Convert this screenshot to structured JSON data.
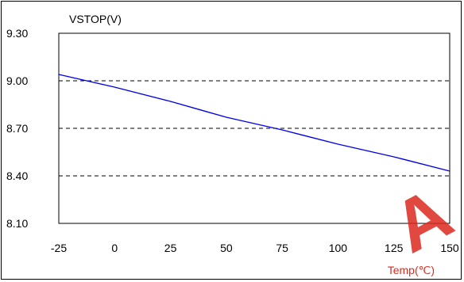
{
  "chart_data": {
    "type": "line",
    "title": "",
    "ylabel": "VSTOP(V)",
    "xlabel": "Temp(℃)",
    "xlim": [
      -25,
      150
    ],
    "ylim": [
      8.1,
      9.3
    ],
    "x_ticks": [
      "-25",
      "0",
      "25",
      "50",
      "75",
      "100",
      "125",
      "150"
    ],
    "y_ticks": [
      "9.30",
      "9.00",
      "8.70",
      "8.40",
      "8.10"
    ],
    "grid": "horizontal dashed",
    "series": [
      {
        "color": "#0000ee",
        "x": [
          -25,
          0,
          25,
          50,
          75,
          100,
          125,
          150
        ],
        "y": [
          9.04,
          8.96,
          8.87,
          8.77,
          8.69,
          8.6,
          8.52,
          8.43
        ]
      }
    ]
  },
  "watermark": "A"
}
